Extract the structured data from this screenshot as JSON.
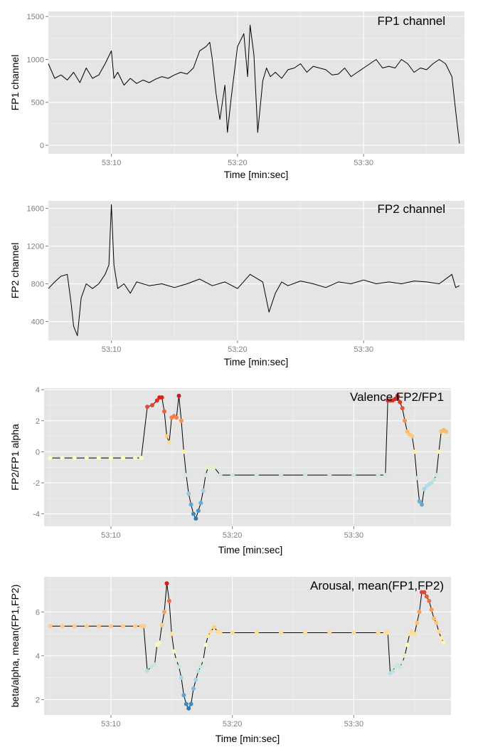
{
  "chart_data": [
    {
      "type": "line",
      "title": "FP1 channel",
      "xlabel": "Time [min:sec]",
      "ylabel": "FP1 channel",
      "x_unit": "seconds after 53:00",
      "xlim": [
        5.0,
        38.0
      ],
      "ylim": [
        -100,
        1560
      ],
      "xticks": [
        10,
        20,
        30
      ],
      "xtick_labels": [
        "53:10",
        "53:20",
        "53:30"
      ],
      "yticks": [
        0,
        500,
        1000,
        1500
      ],
      "ytick_labels": [
        "0",
        "500",
        "1000",
        "1500"
      ],
      "grid": true,
      "legend": "none",
      "line_color": "#000000",
      "series": [
        {
          "x": [
            5.0,
            5.5,
            6.0,
            6.5,
            7.0,
            7.5,
            8.0,
            8.5,
            9.0,
            9.5,
            10.0,
            10.2,
            10.5,
            11.0,
            11.5,
            12.0,
            12.5,
            13.0,
            13.5,
            14.0,
            14.5,
            15.0,
            15.5,
            16.0,
            16.5,
            17.0,
            17.5,
            17.8,
            18.0,
            18.3,
            18.6,
            19.0,
            19.2,
            19.5,
            20.0,
            20.5,
            20.8,
            21.0,
            21.3,
            21.6,
            22.0,
            22.3,
            22.6,
            23.0,
            23.5,
            24.0,
            24.5,
            25.0,
            25.5,
            26.0,
            26.5,
            27.0,
            27.5,
            28.0,
            28.5,
            29.0,
            29.5,
            30.0,
            30.5,
            31.0,
            31.5,
            32.0,
            32.5,
            33.0,
            33.5,
            34.0,
            34.5,
            35.0,
            35.5,
            36.0,
            36.5,
            37.0,
            37.3,
            37.6
          ],
          "y": [
            950,
            780,
            820,
            760,
            850,
            730,
            900,
            780,
            820,
            950,
            1100,
            780,
            850,
            700,
            780,
            720,
            760,
            730,
            770,
            800,
            780,
            820,
            850,
            830,
            900,
            1100,
            1150,
            1200,
            1000,
            600,
            300,
            700,
            150,
            550,
            1150,
            1300,
            800,
            1400,
            1050,
            150,
            750,
            900,
            800,
            850,
            780,
            880,
            900,
            950,
            850,
            920,
            900,
            880,
            820,
            830,
            900,
            800,
            850,
            900,
            950,
            1000,
            900,
            920,
            900,
            1000,
            950,
            850,
            900,
            880,
            950,
            1000,
            950,
            800,
            400,
            20
          ]
        }
      ]
    },
    {
      "type": "line",
      "title": "FP2 channel",
      "xlabel": "Time [min:sec]",
      "ylabel": "FP2 channel",
      "x_unit": "seconds after 53:00",
      "xlim": [
        5.0,
        38.0
      ],
      "ylim": [
        200,
        1680
      ],
      "xticks": [
        10,
        20,
        30
      ],
      "xtick_labels": [
        "53:10",
        "53:20",
        "53:30"
      ],
      "yticks": [
        400,
        800,
        1200,
        1600
      ],
      "ytick_labels": [
        "400",
        "800",
        "1200",
        "1600"
      ],
      "grid": true,
      "legend": "none",
      "line_color": "#000000",
      "series": [
        {
          "x": [
            5.0,
            5.5,
            6.0,
            6.5,
            6.8,
            7.0,
            7.3,
            7.6,
            8.0,
            8.5,
            9.0,
            9.5,
            9.8,
            10.0,
            10.2,
            10.5,
            11.0,
            11.5,
            12.0,
            13.0,
            14.0,
            15.0,
            16.0,
            17.0,
            18.0,
            19.0,
            20.0,
            21.0,
            22.0,
            22.5,
            23.0,
            23.5,
            24.0,
            25.0,
            26.0,
            27.0,
            28.0,
            29.0,
            30.0,
            31.0,
            32.0,
            33.0,
            34.0,
            35.0,
            36.0,
            37.0,
            37.3,
            37.6
          ],
          "y": [
            750,
            820,
            880,
            900,
            600,
            350,
            250,
            650,
            800,
            750,
            800,
            900,
            1000,
            1640,
            1000,
            750,
            800,
            700,
            820,
            780,
            800,
            760,
            800,
            850,
            780,
            820,
            750,
            900,
            820,
            500,
            700,
            820,
            780,
            830,
            800,
            760,
            820,
            800,
            840,
            800,
            820,
            800,
            830,
            820,
            800,
            900,
            760,
            780
          ]
        }
      ]
    },
    {
      "type": "line",
      "title": "Valence FP2/FP1",
      "xlabel": "Time [min:sec]",
      "ylabel": "FP2/FP1 alpha",
      "x_unit": "seconds after 53:00",
      "xlim": [
        4.5,
        38.0
      ],
      "ylim": [
        -4.8,
        4.1
      ],
      "xticks": [
        10,
        20,
        30
      ],
      "xtick_labels": [
        "53:10",
        "53:20",
        "53:30"
      ],
      "yticks": [
        -4,
        -2,
        0,
        2,
        4
      ],
      "ytick_labels": [
        "-4",
        "-2",
        "0",
        "2",
        "4"
      ],
      "grid": true,
      "legend": "none",
      "line_color": "#000000",
      "color_scale": "diverging",
      "palette": [
        "#2c7bb6",
        "#abd9e9",
        "#ffffbf",
        "#fdae61",
        "#d7191c"
      ],
      "series": [
        {
          "x": [
            5.0,
            6.0,
            7.0,
            8.0,
            9.0,
            10.0,
            11.0,
            12.0,
            12.5,
            13.0,
            13.4,
            13.8,
            14.0,
            14.2,
            14.4,
            14.6,
            14.8,
            15.0,
            15.2,
            15.4,
            15.6,
            15.8,
            16.0,
            16.2,
            16.4,
            16.6,
            16.8,
            17.0,
            17.2,
            17.4,
            17.6,
            17.8,
            18.0,
            18.2,
            18.5,
            19.0,
            20.0,
            22.0,
            24.0,
            26.0,
            28.0,
            30.0,
            32.0,
            32.6,
            32.8,
            33.0,
            33.2,
            33.4,
            33.6,
            33.8,
            34.0,
            34.2,
            34.4,
            34.6,
            34.8,
            35.0,
            35.2,
            35.4,
            35.6,
            35.8,
            36.0,
            36.2,
            36.4,
            36.6,
            36.8,
            37.0,
            37.2,
            37.4,
            37.6
          ],
          "y": [
            -0.4,
            -0.4,
            -0.4,
            -0.4,
            -0.4,
            -0.4,
            -0.4,
            -0.4,
            -0.4,
            2.9,
            3.0,
            3.3,
            3.5,
            3.5,
            2.6,
            1.0,
            0.6,
            2.2,
            2.3,
            2.2,
            3.6,
            2.0,
            0.0,
            -1.5,
            -2.7,
            -3.4,
            -4.0,
            -4.3,
            -3.8,
            -3.3,
            -2.5,
            -1.5,
            -1.0,
            -1.0,
            -1.0,
            -1.5,
            -1.5,
            -1.5,
            -1.5,
            -1.5,
            -1.5,
            -1.5,
            -1.5,
            -1.5,
            3.3,
            3.3,
            3.3,
            3.4,
            3.6,
            3.2,
            2.8,
            2.0,
            1.3,
            1.1,
            1.0,
            0.0,
            -1.7,
            -3.2,
            -3.4,
            -2.4,
            -2.2,
            -2.1,
            -2.0,
            -1.8,
            -1.5,
            0.0,
            1.3,
            1.4,
            1.3
          ]
        }
      ]
    },
    {
      "type": "line",
      "title": "Arousal, mean(FP1,FP2)",
      "xlabel": "Time [min:sec]",
      "ylabel": "beta/alpha, mean(FP1,FP2)",
      "x_unit": "seconds after 53:00",
      "xlim": [
        4.5,
        38.0
      ],
      "ylim": [
        1.3,
        7.6
      ],
      "xticks": [
        10,
        20,
        30
      ],
      "xtick_labels": [
        "53:10",
        "53:20",
        "53:30"
      ],
      "yticks": [
        2,
        4,
        6
      ],
      "ytick_labels": [
        "2",
        "4",
        "6"
      ],
      "grid": true,
      "legend": "none",
      "line_color": "#000000",
      "color_scale": "diverging",
      "palette": [
        "#2c7bb6",
        "#abd9e9",
        "#ffffbf",
        "#fdae61",
        "#d7191c"
      ],
      "series": [
        {
          "x": [
            5.0,
            6.0,
            7.0,
            8.0,
            9.0,
            10.0,
            11.0,
            12.0,
            12.5,
            12.7,
            13.0,
            13.3,
            13.6,
            13.8,
            14.0,
            14.2,
            14.4,
            14.6,
            14.8,
            15.0,
            15.2,
            15.4,
            15.6,
            15.8,
            16.0,
            16.2,
            16.4,
            16.6,
            16.8,
            17.0,
            17.2,
            17.4,
            17.6,
            17.8,
            18.0,
            18.2,
            18.5,
            18.8,
            19.0,
            20.0,
            22.0,
            24.0,
            26.0,
            28.0,
            30.0,
            32.0,
            32.6,
            32.8,
            33.0,
            33.2,
            33.4,
            33.6,
            33.8,
            34.0,
            34.2,
            34.4,
            34.6,
            34.8,
            35.0,
            35.2,
            35.4,
            35.6,
            35.8,
            36.0,
            36.2,
            36.4,
            36.6,
            36.8,
            37.0,
            37.2,
            37.4
          ],
          "y": [
            5.35,
            5.35,
            5.35,
            5.35,
            5.35,
            5.35,
            5.35,
            5.35,
            5.35,
            5.35,
            3.3,
            3.5,
            3.6,
            4.5,
            4.6,
            5.4,
            6.0,
            7.3,
            6.5,
            5.0,
            4.2,
            3.8,
            3.5,
            3.0,
            2.2,
            1.8,
            1.6,
            1.8,
            2.5,
            2.9,
            3.3,
            3.5,
            3.8,
            4.5,
            4.9,
            5.1,
            5.3,
            5.1,
            5.05,
            5.05,
            5.05,
            5.05,
            5.05,
            5.05,
            5.05,
            5.05,
            5.05,
            5.05,
            3.2,
            3.3,
            3.5,
            3.6,
            3.5,
            3.7,
            4.0,
            4.5,
            5.0,
            5.1,
            5.0,
            5.5,
            6.0,
            6.9,
            6.9,
            6.7,
            6.5,
            6.1,
            5.7,
            5.5,
            5.1,
            4.8,
            4.6
          ]
        }
      ]
    }
  ]
}
